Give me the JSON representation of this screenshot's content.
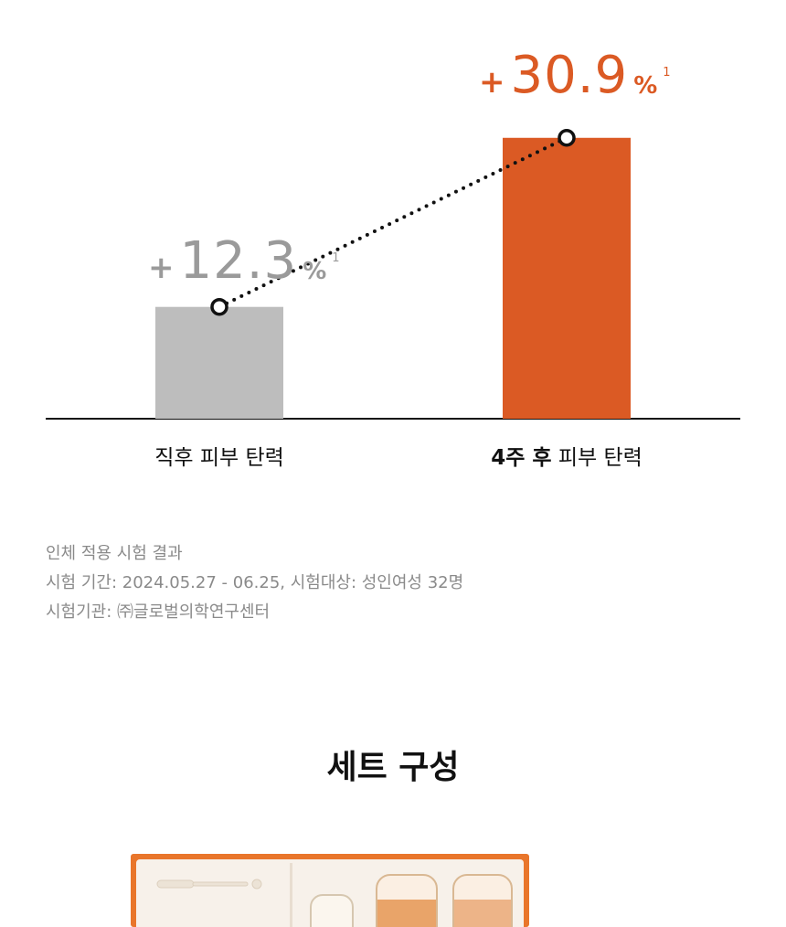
{
  "chart_data": {
    "type": "bar",
    "categories": [
      "직후 피부 탄력",
      "4주 후 피부 탄력"
    ],
    "values": [
      12.3,
      30.9
    ],
    "bar_colors": [
      "#bdbdbd",
      "#db5a24"
    ],
    "value_label_colors": [
      "#9a9a9a",
      "#db5a24"
    ],
    "ylim": [
      0,
      35
    ],
    "grid": false,
    "trend_line": "dotted",
    "value_labels": [
      {
        "plus": "+",
        "number": "12.3",
        "percent": "%",
        "footnote": "1"
      },
      {
        "plus": "+",
        "number": "30.9",
        "percent": "%",
        "footnote": "1"
      }
    ],
    "category_labels": [
      {
        "strong": "",
        "text": "직후 피부 탄력"
      },
      {
        "strong": "4주 후",
        "text": " 피부 탄력"
      }
    ]
  },
  "notes": {
    "line1": "인체 적용 시험 결과",
    "line2": "시험 기간: 2024.05.27 - 06.25, 시험대상: 성인여성 32명",
    "line3": "시험기관: ㈜글로벌의학연구센터"
  },
  "set_section": {
    "title": "세트 구성",
    "box_color": "#e9762b"
  }
}
